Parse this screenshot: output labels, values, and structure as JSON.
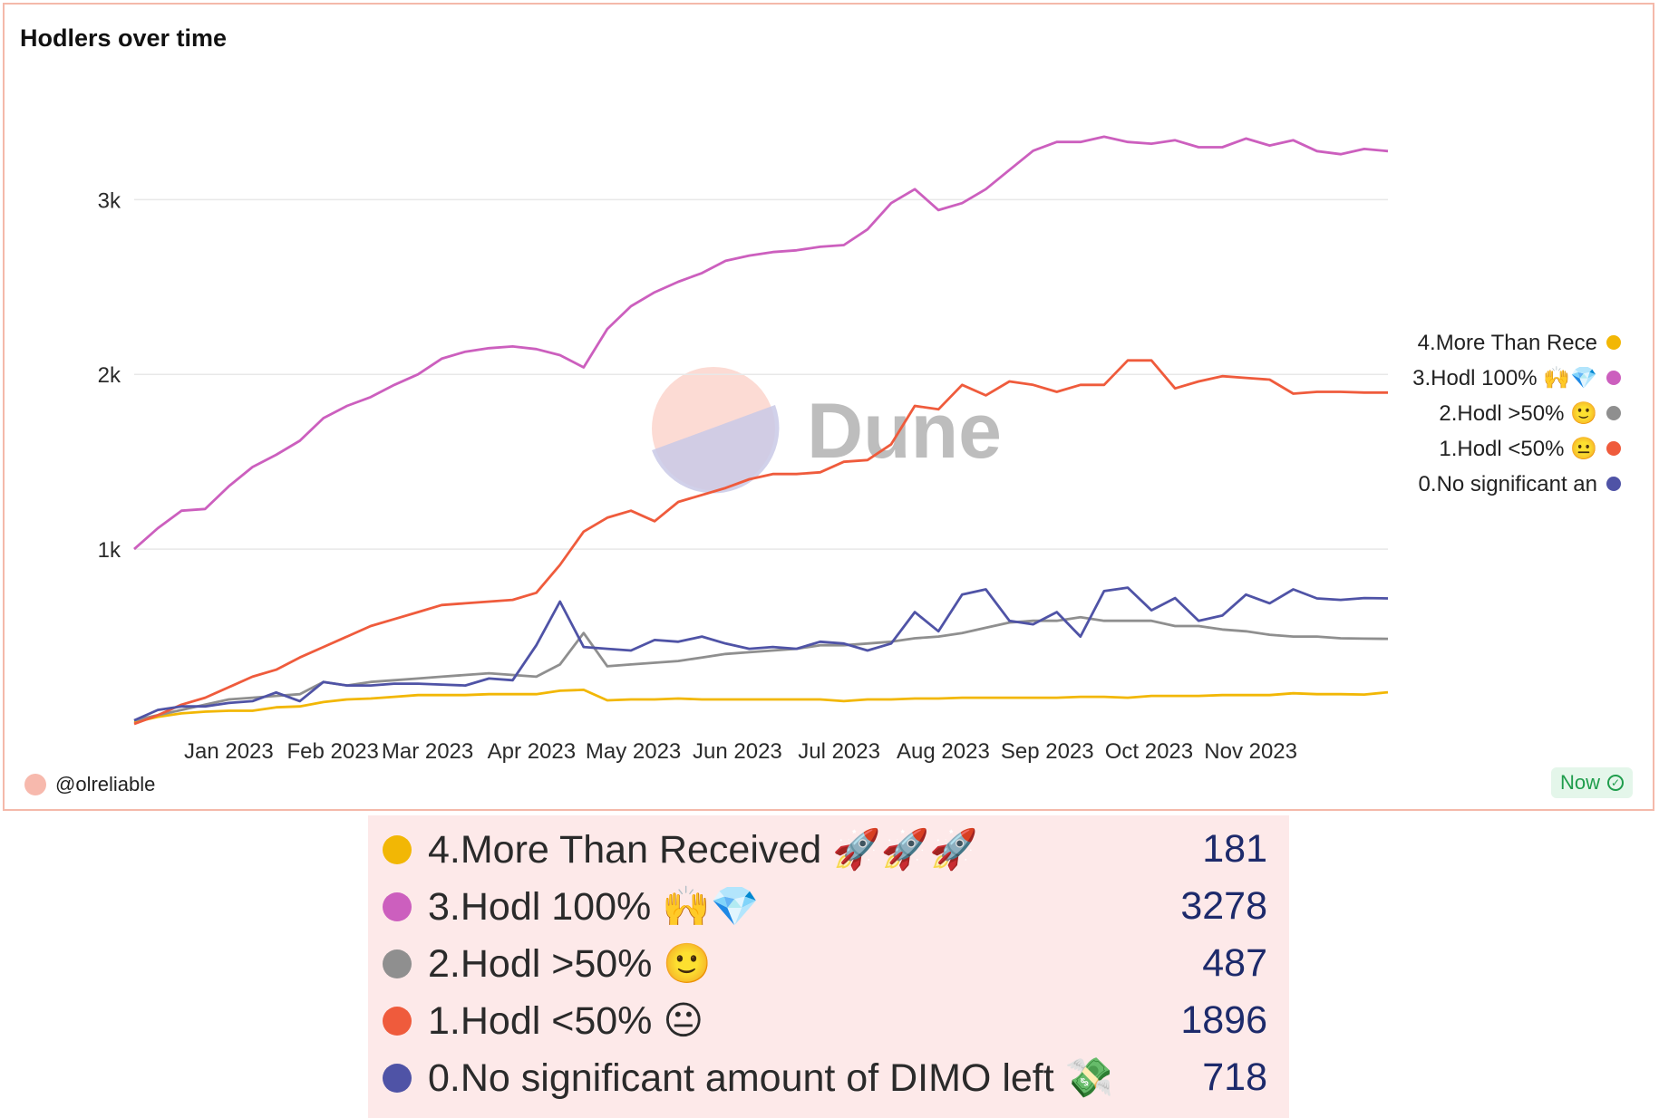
{
  "chart_title": "Hodlers over time",
  "watermark": "Dune",
  "author": "@olreliable",
  "status_badge": "Now",
  "chart_data": {
    "type": "line",
    "title": "Hodlers over time",
    "xlabel": "",
    "ylabel": "",
    "ylim": [
      0,
      3650
    ],
    "grid": true,
    "legend_position": "right",
    "y_ticks": [
      {
        "value": 1000,
        "label": "1k"
      },
      {
        "value": 2000,
        "label": "2k"
      },
      {
        "value": 3000,
        "label": "3k"
      }
    ],
    "x_ticks": [
      {
        "x": 4,
        "label": "Jan 2023"
      },
      {
        "x": 8.4,
        "label": "Feb 2023"
      },
      {
        "x": 12.4,
        "label": "Mar 2023"
      },
      {
        "x": 16.8,
        "label": "Apr 2023"
      },
      {
        "x": 21.1,
        "label": "May 2023"
      },
      {
        "x": 25.5,
        "label": "Jun 2023"
      },
      {
        "x": 29.8,
        "label": "Jul 2023"
      },
      {
        "x": 34.2,
        "label": "Aug 2023"
      },
      {
        "x": 38.6,
        "label": "Sep 2023"
      },
      {
        "x": 42.9,
        "label": "Oct 2023"
      },
      {
        "x": 47.2,
        "label": "Nov 2023"
      }
    ],
    "x": [
      0,
      1,
      2,
      3,
      4,
      5,
      6,
      7,
      8,
      9,
      10,
      11,
      12,
      13,
      14,
      15,
      16,
      17,
      18,
      19,
      20,
      21,
      22,
      23,
      24,
      25,
      26,
      27,
      28,
      29,
      30,
      31,
      32,
      33,
      34,
      35,
      36,
      37,
      38,
      39,
      40,
      41,
      42,
      43,
      44,
      45,
      46,
      47,
      48,
      49,
      50,
      51,
      52,
      53
    ],
    "series": [
      {
        "name": "4.More Than Received 🚀🚀🚀",
        "legend_label": "4.More Than Rece",
        "color": "#f2b705",
        "values": [
          10,
          40,
          60,
          70,
          75,
          75,
          95,
          100,
          125,
          140,
          145,
          155,
          165,
          165,
          165,
          170,
          170,
          170,
          190,
          195,
          135,
          140,
          140,
          145,
          140,
          140,
          140,
          140,
          140,
          140,
          130,
          140,
          140,
          145,
          145,
          150,
          150,
          150,
          150,
          150,
          155,
          155,
          150,
          160,
          160,
          160,
          165,
          165,
          165,
          175,
          170,
          170,
          168,
          181
        ]
      },
      {
        "name": "3.Hodl 100% 🙌💎",
        "legend_label": "3.Hodl 100% 🙌💎",
        "color": "#cc5fbe",
        "values": [
          1000,
          1120,
          1220,
          1230,
          1360,
          1470,
          1540,
          1620,
          1750,
          1820,
          1870,
          1940,
          2000,
          2090,
          2130,
          2150,
          2160,
          2145,
          2110,
          2040,
          2260,
          2390,
          2470,
          2530,
          2580,
          2650,
          2680,
          2700,
          2710,
          2730,
          2740,
          2830,
          2980,
          3060,
          2940,
          2980,
          3060,
          3170,
          3280,
          3330,
          3330,
          3360,
          3330,
          3320,
          3340,
          3300,
          3300,
          3350,
          3310,
          3340,
          3278,
          3260,
          3290,
          3278
        ]
      },
      {
        "name": "2.Hodl >50% 🙂",
        "legend_label": "2.Hodl >50% 🙂",
        "color": "#8f8f8f",
        "values": [
          20,
          50,
          80,
          110,
          140,
          150,
          160,
          170,
          240,
          220,
          240,
          250,
          260,
          270,
          280,
          290,
          280,
          270,
          340,
          520,
          330,
          340,
          350,
          360,
          380,
          400,
          410,
          420,
          430,
          450,
          450,
          460,
          470,
          490,
          500,
          520,
          550,
          580,
          590,
          590,
          610,
          590,
          590,
          590,
          560,
          560,
          540,
          530,
          510,
          500,
          500,
          490,
          488,
          487
        ]
      },
      {
        "name": "1.Hodl <50% 😐",
        "legend_label": "1.Hodl <50% 😐",
        "color": "#ef5b3c",
        "values": [
          0,
          50,
          110,
          150,
          210,
          270,
          310,
          380,
          440,
          500,
          560,
          600,
          640,
          680,
          690,
          700,
          710,
          750,
          910,
          1100,
          1180,
          1220,
          1160,
          1270,
          1310,
          1350,
          1400,
          1430,
          1430,
          1440,
          1500,
          1510,
          1600,
          1820,
          1800,
          1940,
          1880,
          1960,
          1940,
          1900,
          1940,
          1940,
          2080,
          2080,
          1920,
          1960,
          1990,
          1980,
          1970,
          1890,
          1900,
          1900,
          1896,
          1896
        ]
      },
      {
        "name": "0.No significant amount of DIMO left 💸",
        "legend_label": "0.No significant an",
        "color": "#4f53a6",
        "values": [
          20,
          80,
          100,
          100,
          120,
          130,
          180,
          130,
          240,
          220,
          220,
          230,
          230,
          225,
          220,
          260,
          250,
          450,
          700,
          440,
          430,
          420,
          480,
          470,
          500,
          460,
          430,
          440,
          430,
          470,
          460,
          420,
          460,
          640,
          530,
          740,
          770,
          590,
          570,
          640,
          500,
          760,
          780,
          650,
          720,
          590,
          620,
          740,
          690,
          770,
          718,
          710,
          720,
          718
        ]
      }
    ]
  },
  "summary": [
    {
      "label": "4.More Than Received 🚀🚀🚀",
      "value": "181",
      "color": "#f2b705"
    },
    {
      "label": "3.Hodl 100% 🙌💎",
      "value": "3278",
      "color": "#cc5fbe"
    },
    {
      "label": "2.Hodl >50% 🙂",
      "value": "487",
      "color": "#8f8f8f"
    },
    {
      "label": "1.Hodl <50% 😐",
      "value": "1896",
      "color": "#ef5b3c"
    },
    {
      "label": "0.No significant amount of DIMO left 💸",
      "value": "718",
      "color": "#4f53a6"
    }
  ]
}
